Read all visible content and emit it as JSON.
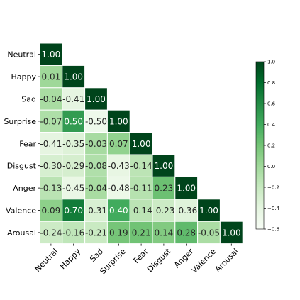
{
  "chart_data": {
    "type": "heatmap",
    "title": "",
    "xlabel": "",
    "ylabel": "",
    "mask": "upper-triangle",
    "labels": [
      "Neutral",
      "Happy",
      "Sad",
      "Surprise",
      "Fear",
      "Disgust",
      "Anger",
      "Valence",
      "Arousal"
    ],
    "values": [
      [
        1.0
      ],
      [
        0.01,
        1.0
      ],
      [
        -0.04,
        -0.41,
        1.0
      ],
      [
        -0.07,
        0.5,
        -0.5,
        1.0
      ],
      [
        -0.41,
        -0.35,
        -0.03,
        0.07,
        1.0
      ],
      [
        -0.3,
        -0.29,
        -0.08,
        -0.43,
        -0.14,
        1.0
      ],
      [
        -0.13,
        -0.45,
        -0.04,
        -0.48,
        -0.11,
        0.23,
        1.0
      ],
      [
        0.09,
        0.7,
        -0.31,
        0.4,
        -0.14,
        -0.23,
        -0.36,
        1.0
      ],
      [
        -0.24,
        -0.16,
        -0.21,
        0.19,
        0.21,
        0.14,
        0.28,
        -0.05,
        1.0
      ]
    ],
    "value_labels": [
      [
        "1.00"
      ],
      [
        "0.01",
        "1.00"
      ],
      [
        "-0.04",
        "-0.41",
        "1.00"
      ],
      [
        "-0.07",
        "0.50",
        "-0.50",
        "1.00"
      ],
      [
        "-0.41",
        "-0.35",
        "-0.03",
        "0.07",
        "1.00"
      ],
      [
        "-0.30",
        "-0.29",
        "-0.08",
        "-0.43",
        "-0.14",
        "1.00"
      ],
      [
        "-0.13",
        "-0.45",
        "-0.04",
        "-0.48",
        "-0.11",
        "0.23",
        "1.00"
      ],
      [
        "0.09",
        "0.70",
        "-0.31",
        "0.40",
        "-0.14",
        "-0.23",
        "-0.36",
        "1.00"
      ],
      [
        "-0.24",
        "-0.16",
        "-0.21",
        "0.19",
        "0.21",
        "0.14",
        "0.28",
        "-0.05",
        "1.00"
      ]
    ],
    "colorbar": {
      "colormap": "Greens",
      "vmin": -0.6,
      "vmax": 1.0,
      "ticks": [
        1.0,
        0.8,
        0.6,
        0.4,
        0.2,
        0.0,
        -0.2,
        -0.4,
        -0.6
      ],
      "tick_labels": [
        "1.0",
        "0.8",
        "0.6",
        "0.4",
        "0.2",
        "0.0",
        "−0.2",
        "−0.4",
        "−0.6"
      ]
    },
    "colors": {
      "low": "#f7fcf5",
      "mid": "#74c476",
      "high": "#00441b",
      "cell_border": "#ffffff"
    }
  }
}
